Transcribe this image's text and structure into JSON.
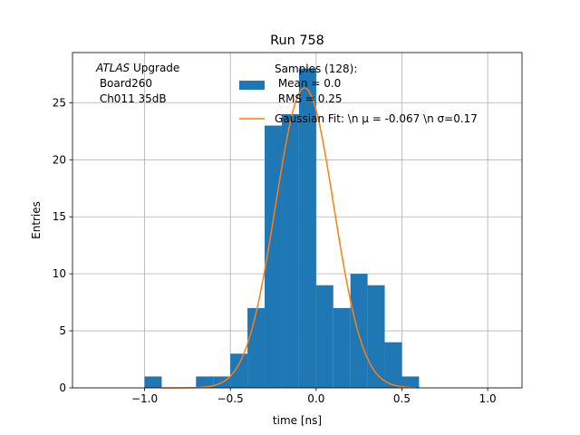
{
  "chart_data": {
    "type": "bar",
    "title": "Run 758",
    "xlabel": "time [ns]",
    "ylabel": "Entries",
    "xlim": [
      -1.42,
      1.2
    ],
    "ylim": [
      0,
      29.4
    ],
    "grid": true,
    "x_ticks": [
      -1.0,
      -0.5,
      0.0,
      0.5,
      1.0
    ],
    "x_tick_labels": [
      "−1.0",
      "−0.5",
      "0.0",
      "0.5",
      "1.0"
    ],
    "y_ticks": [
      0,
      5,
      10,
      15,
      20,
      25
    ],
    "y_tick_labels": [
      "0",
      "5",
      "10",
      "15",
      "20",
      "25"
    ],
    "histogram": {
      "name": "Samples (128)",
      "color": "#1f77b4",
      "bin_edges": [
        -1.0,
        -0.9,
        -0.8,
        -0.7,
        -0.6,
        -0.5,
        -0.4,
        -0.3,
        -0.2,
        -0.1,
        0.0,
        0.1,
        0.2,
        0.3,
        0.4,
        0.5,
        0.6,
        0.7,
        0.8,
        0.9,
        1.0,
        1.1
      ],
      "counts": [
        1,
        0,
        0,
        1,
        1,
        3,
        7,
        23,
        24,
        28,
        9,
        7,
        10,
        9,
        4,
        1,
        0,
        0,
        0,
        0,
        0
      ]
    },
    "gaussian_fit": {
      "name": "Gaussian Fit",
      "color": "#ff7f0e",
      "mu": -0.067,
      "sigma": 0.17,
      "amplitude": 26.3,
      "x_range": [
        -0.9,
        0.58
      ]
    },
    "legend": {
      "location": "top-center",
      "hist_label_lines": [
        "Samples (128):",
        " Mean = 0.0",
        " RMS = 0.25"
      ],
      "fit_label": "Gaussian Fit: \\n μ = -0.067 \\n σ=0.17"
    },
    "annotation": {
      "italic": "ATLAS",
      "rest": " Upgrade",
      "line2": " Board260",
      "line3": " Ch011 35dB"
    }
  }
}
